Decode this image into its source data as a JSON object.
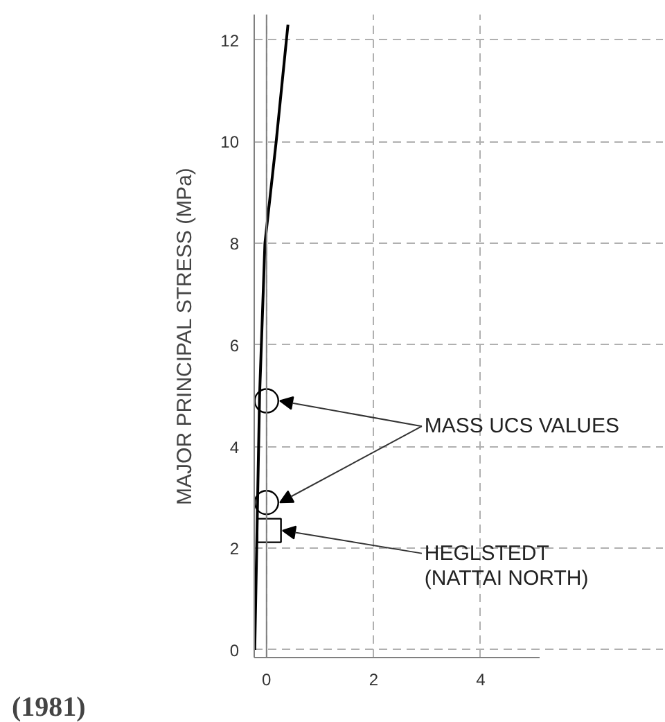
{
  "chart_data": {
    "type": "line",
    "ylabel": "MAJOR PRINCIPAL STRESS (MPa)",
    "xlim": [
      -0.23,
      5.1
    ],
    "ylim": [
      -0.15,
      12.5
    ],
    "xticks": [
      0,
      2,
      4
    ],
    "yticks": [
      0,
      2,
      4,
      6,
      8,
      10,
      12
    ],
    "grid": true,
    "line_style": "solid",
    "series": [
      {
        "color": "#000000",
        "x": [
          -0.22,
          -0.13,
          -0.03,
          0.18,
          0.4
        ],
        "values": [
          0,
          5,
          8,
          10,
          12.3
        ]
      },
      {
        "type": "scatter",
        "name": "MASS UCS VALUES",
        "marker": "circle",
        "color": "#000000",
        "x": [
          0,
          0
        ],
        "values": [
          4.9,
          2.9
        ]
      },
      {
        "type": "scatter",
        "name": "HEGLSTEDT\n(NATTAI NORTH)",
        "marker": "square",
        "color": "#000000",
        "x": [
          0.05
        ],
        "values": [
          2.35
        ]
      }
    ],
    "ref_lines": [
      {
        "axis": "x",
        "value": 0,
        "color": "#808080",
        "line_style": "solid"
      }
    ],
    "annotations": [
      "(1981)"
    ]
  }
}
